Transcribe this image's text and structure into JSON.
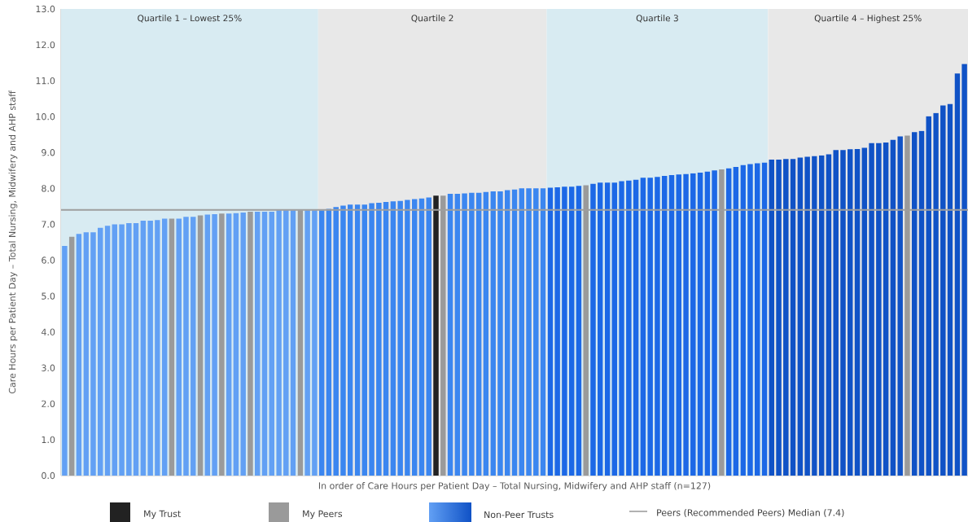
{
  "chart_data": {
    "type": "bar",
    "xlabel": "In order of Care Hours per Patient Day – Total Nursing, Midwifery and AHP staff (n=127)",
    "ylabel": "Care Hours per Patient Day – Total Nursing, Midwifery and AHP staff",
    "categories": [
      null,
      null,
      null,
      null,
      null,
      null,
      null,
      null,
      null,
      null,
      null,
      null,
      null,
      null,
      null,
      null,
      null,
      null,
      null,
      null,
      null,
      null,
      null,
      null,
      null,
      null,
      null,
      null,
      null,
      null,
      null,
      null,
      null,
      null,
      null,
      null,
      null,
      null,
      null,
      null,
      null,
      null,
      null,
      null,
      null,
      null,
      null,
      null,
      null,
      null,
      null,
      null,
      null,
      null,
      null,
      null,
      null,
      null,
      null,
      null,
      null,
      null,
      null,
      null,
      null,
      null,
      null,
      null,
      null,
      null,
      null,
      null,
      null,
      null,
      null,
      null,
      null,
      null,
      null,
      null,
      null,
      null,
      null,
      null,
      null,
      null,
      null,
      null,
      null,
      null,
      null,
      null,
      null,
      null,
      null,
      null,
      null,
      null,
      null,
      null,
      null,
      null,
      null,
      null,
      null,
      null,
      null,
      null,
      null,
      null,
      null,
      null,
      null,
      null,
      null,
      null,
      null,
      null,
      null,
      null,
      null,
      null,
      null,
      null,
      null,
      null,
      null
    ],
    "series": [
      {
        "name": "My Trust",
        "color": "#222222",
        "values": [
          null,
          null,
          null,
          null,
          null,
          null,
          null,
          null,
          null,
          null,
          null,
          null,
          null,
          null,
          null,
          null,
          null,
          null,
          null,
          null,
          null,
          null,
          null,
          null,
          null,
          null,
          null,
          null,
          null,
          null,
          null,
          null,
          null,
          null,
          null,
          null,
          null,
          null,
          null,
          null,
          null,
          null,
          null,
          null,
          null,
          null,
          null,
          null,
          null,
          null,
          null,
          null,
          7.8,
          null,
          null,
          null,
          null,
          null,
          null,
          null,
          null,
          null,
          null,
          null,
          null,
          null,
          null,
          null,
          null,
          null,
          null,
          null,
          null,
          null,
          null,
          null,
          null,
          null,
          null,
          null,
          null,
          null,
          null,
          null,
          null,
          null,
          null,
          null,
          null,
          null,
          null,
          null,
          null,
          null,
          null,
          null,
          null,
          null,
          null,
          null,
          null,
          null,
          null,
          null,
          null,
          null,
          null,
          null,
          null,
          null,
          null,
          null,
          null,
          null,
          null,
          null,
          null,
          null,
          null,
          null,
          null,
          null,
          null,
          null,
          null,
          null,
          null
        ]
      },
      {
        "name": "My Peers",
        "color": "#9a9a9a",
        "values": [
          null,
          6.65,
          null,
          null,
          null,
          null,
          null,
          null,
          null,
          null,
          null,
          null,
          null,
          null,
          null,
          7.16,
          null,
          null,
          null,
          7.25,
          null,
          null,
          7.3,
          null,
          null,
          null,
          7.35,
          null,
          null,
          null,
          null,
          null,
          null,
          7.39,
          null,
          null,
          null,
          null,
          null,
          null,
          null,
          null,
          null,
          null,
          null,
          null,
          null,
          null,
          null,
          null,
          null,
          null,
          null,
          7.8,
          null,
          null,
          null,
          null,
          null,
          null,
          null,
          null,
          null,
          null,
          null,
          null,
          null,
          null,
          null,
          null,
          null,
          null,
          null,
          8.09,
          null,
          null,
          null,
          null,
          null,
          null,
          null,
          null,
          null,
          null,
          null,
          null,
          null,
          null,
          null,
          null,
          null,
          null,
          8.53,
          null,
          null,
          null,
          null,
          null,
          null,
          null,
          null,
          null,
          null,
          null,
          null,
          null,
          null,
          null,
          null,
          null,
          null,
          null,
          null,
          null,
          null,
          null,
          null,
          null,
          9.47,
          null,
          null,
          null,
          null,
          null,
          null,
          null,
          null
        ]
      },
      {
        "name": "Non-Peer Trusts",
        "values": [
          6.4,
          null,
          6.73,
          6.78,
          6.78,
          6.9,
          6.96,
          7.0,
          7.0,
          7.03,
          7.03,
          7.1,
          7.1,
          7.12,
          7.16,
          null,
          7.16,
          7.21,
          7.21,
          null,
          7.27,
          7.28,
          null,
          7.3,
          7.31,
          7.33,
          null,
          7.35,
          7.35,
          7.35,
          7.39,
          7.39,
          7.39,
          null,
          7.39,
          7.39,
          7.39,
          7.43,
          7.48,
          7.52,
          7.55,
          7.55,
          7.55,
          7.59,
          7.6,
          7.62,
          7.64,
          7.65,
          7.68,
          7.7,
          7.72,
          7.75,
          null,
          null,
          7.85,
          7.85,
          7.86,
          7.88,
          7.88,
          7.9,
          7.92,
          7.92,
          7.95,
          7.97,
          8.0,
          8.0,
          8.0,
          8.0,
          8.02,
          8.03,
          8.05,
          8.05,
          8.07,
          null,
          8.13,
          8.16,
          8.16,
          8.16,
          8.2,
          8.22,
          8.24,
          8.3,
          8.3,
          8.32,
          8.35,
          8.37,
          8.39,
          8.4,
          8.42,
          8.44,
          8.47,
          8.5,
          null,
          8.56,
          8.6,
          8.65,
          8.68,
          8.7,
          8.72,
          8.8,
          8.8,
          8.82,
          8.82,
          8.86,
          8.88,
          8.9,
          8.92,
          8.95,
          9.07,
          9.07,
          9.09,
          9.1,
          9.13,
          9.26,
          9.26,
          9.28,
          9.35,
          9.45,
          null,
          9.57,
          9.6,
          10.01,
          10.1,
          10.31,
          10.35,
          11.2,
          11.47
        ],
        "colors": [
          "#62a0f4",
          null,
          "#62a0f4",
          "#62a0f4",
          "#62a0f4",
          "#62a0f4",
          "#62a0f4",
          "#62a0f4",
          "#62a0f4",
          "#62a0f4",
          "#62a0f4",
          "#62a0f4",
          "#62a0f4",
          "#62a0f4",
          "#62a0f4",
          null,
          "#62a0f4",
          "#62a0f4",
          "#62a0f4",
          null,
          "#62a0f4",
          "#62a0f4",
          null,
          "#62a0f4",
          "#62a0f4",
          "#62a0f4",
          null,
          "#62a0f4",
          "#62a0f4",
          "#62a0f4",
          "#62a0f4",
          "#62a0f4",
          "#62a0f4",
          null,
          "#62a0f4",
          "#62a0f4",
          "#3b86f0",
          "#3b86f0",
          "#3b86f0",
          "#3b86f0",
          "#3b86f0",
          "#3b86f0",
          "#3b86f0",
          "#3b86f0",
          "#3b86f0",
          "#3b86f0",
          "#3b86f0",
          "#3b86f0",
          "#3b86f0",
          "#3b86f0",
          "#3b86f0",
          "#3b86f0",
          null,
          null,
          "#3b86f0",
          "#3b86f0",
          "#3b86f0",
          "#3b86f0",
          "#3b86f0",
          "#3b86f0",
          "#3b86f0",
          "#3b86f0",
          "#3b86f0",
          "#3b86f0",
          "#3b86f0",
          "#3b86f0",
          "#3b86f0",
          "#3b86f0",
          "#1c68e6",
          "#1c68e6",
          "#1c68e6",
          "#1c68e6",
          "#1c68e6",
          null,
          "#1c68e6",
          "#1c68e6",
          "#1c68e6",
          "#1c68e6",
          "#1c68e6",
          "#1c68e6",
          "#1c68e6",
          "#1c68e6",
          "#1c68e6",
          "#1c68e6",
          "#1c68e6",
          "#1c68e6",
          "#1c68e6",
          "#1c68e6",
          "#1c68e6",
          "#1c68e6",
          "#1c68e6",
          "#1c68e6",
          null,
          "#1c68e6",
          "#1c68e6",
          "#1c68e6",
          "#1c68e6",
          "#1c68e6",
          "#1c68e6",
          "#1052c6",
          "#1052c6",
          "#1052c6",
          "#1052c6",
          "#1052c6",
          "#1052c6",
          "#1052c6",
          "#1052c6",
          "#1052c6",
          "#1052c6",
          "#1052c6",
          "#1052c6",
          "#1052c6",
          "#1052c6",
          "#1052c6",
          "#1052c6",
          "#1052c6",
          "#1052c6",
          "#1052c6",
          null,
          "#1052c6",
          "#1052c6",
          "#1052c6",
          "#1052c6",
          "#1052c6",
          "#1052c6",
          "#1052c6",
          "#1052c6"
        ]
      }
    ],
    "ylim": [
      0,
      13
    ],
    "yticks": [
      {
        "value": 0,
        "label": "0.0"
      },
      {
        "value": 1,
        "label": "1.0"
      },
      {
        "value": 2,
        "label": "2.0"
      },
      {
        "value": 3,
        "label": "3.0"
      },
      {
        "value": 4,
        "label": "4.0"
      },
      {
        "value": 5,
        "label": "5.0"
      },
      {
        "value": 6,
        "label": "6.0"
      },
      {
        "value": 7,
        "label": "7.0"
      },
      {
        "value": 8,
        "label": "8.0"
      },
      {
        "value": 9,
        "label": "9.0"
      },
      {
        "value": 10,
        "label": "10.0"
      },
      {
        "value": 11,
        "label": "11.0"
      },
      {
        "value": 12,
        "label": "12.0"
      },
      {
        "value": 13,
        "label": "13.0"
      }
    ],
    "annotations": [
      "Quartile 1 – Lowest 25%",
      "Quartile 2",
      "Quartile 3",
      "Quartile 4 – Highest 25%"
    ],
    "ref_lines": [
      {
        "axis": "y",
        "value": 7.4,
        "label": "Peers (Recommended Peers) Median (7.4)",
        "color": "#9e9e9e"
      }
    ],
    "legend": "bottom"
  }
}
